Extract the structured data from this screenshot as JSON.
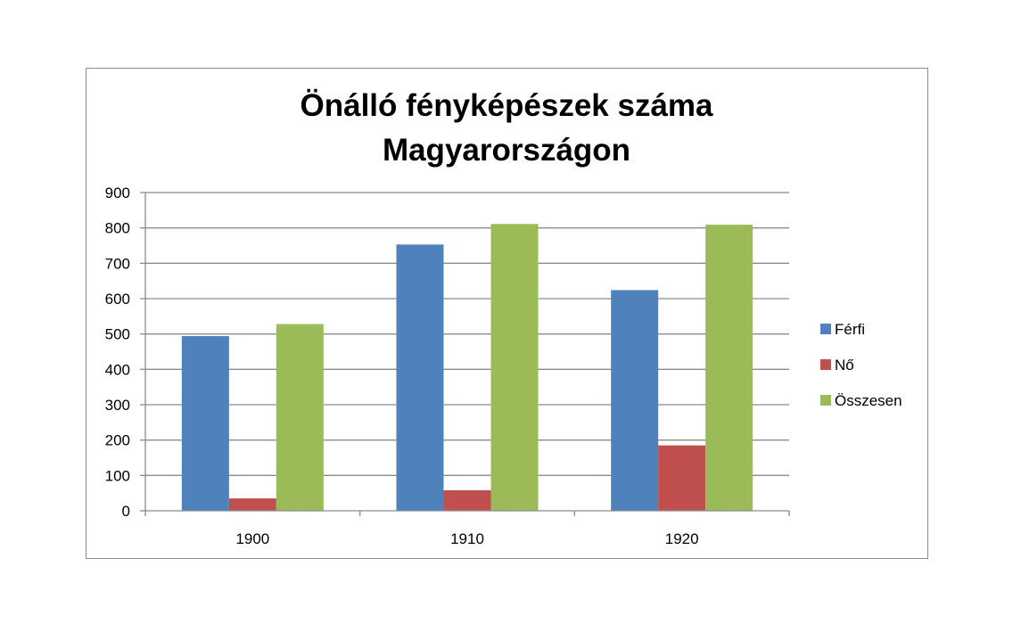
{
  "chart_data": {
    "type": "bar",
    "title": "Önálló fényképészek száma Magyarországon",
    "title_lines": [
      "Önálló fényképészek száma",
      "Magyarországon"
    ],
    "xlabel": "",
    "ylabel": "",
    "categories": [
      "1900",
      "1910",
      "1920"
    ],
    "series": [
      {
        "name": "Férfi",
        "color": "#4f81bd",
        "values": [
          494,
          753,
          624
        ]
      },
      {
        "name": "Nő",
        "color": "#c0504d",
        "values": [
          35,
          58,
          185
        ]
      },
      {
        "name": "Összesen",
        "color": "#9bbb59",
        "values": [
          528,
          811,
          809
        ]
      }
    ],
    "ylim": [
      0,
      900
    ],
    "yticks": [
      0,
      100,
      200,
      300,
      400,
      500,
      600,
      700,
      800,
      900
    ],
    "grid": true,
    "legend_position": "right"
  }
}
